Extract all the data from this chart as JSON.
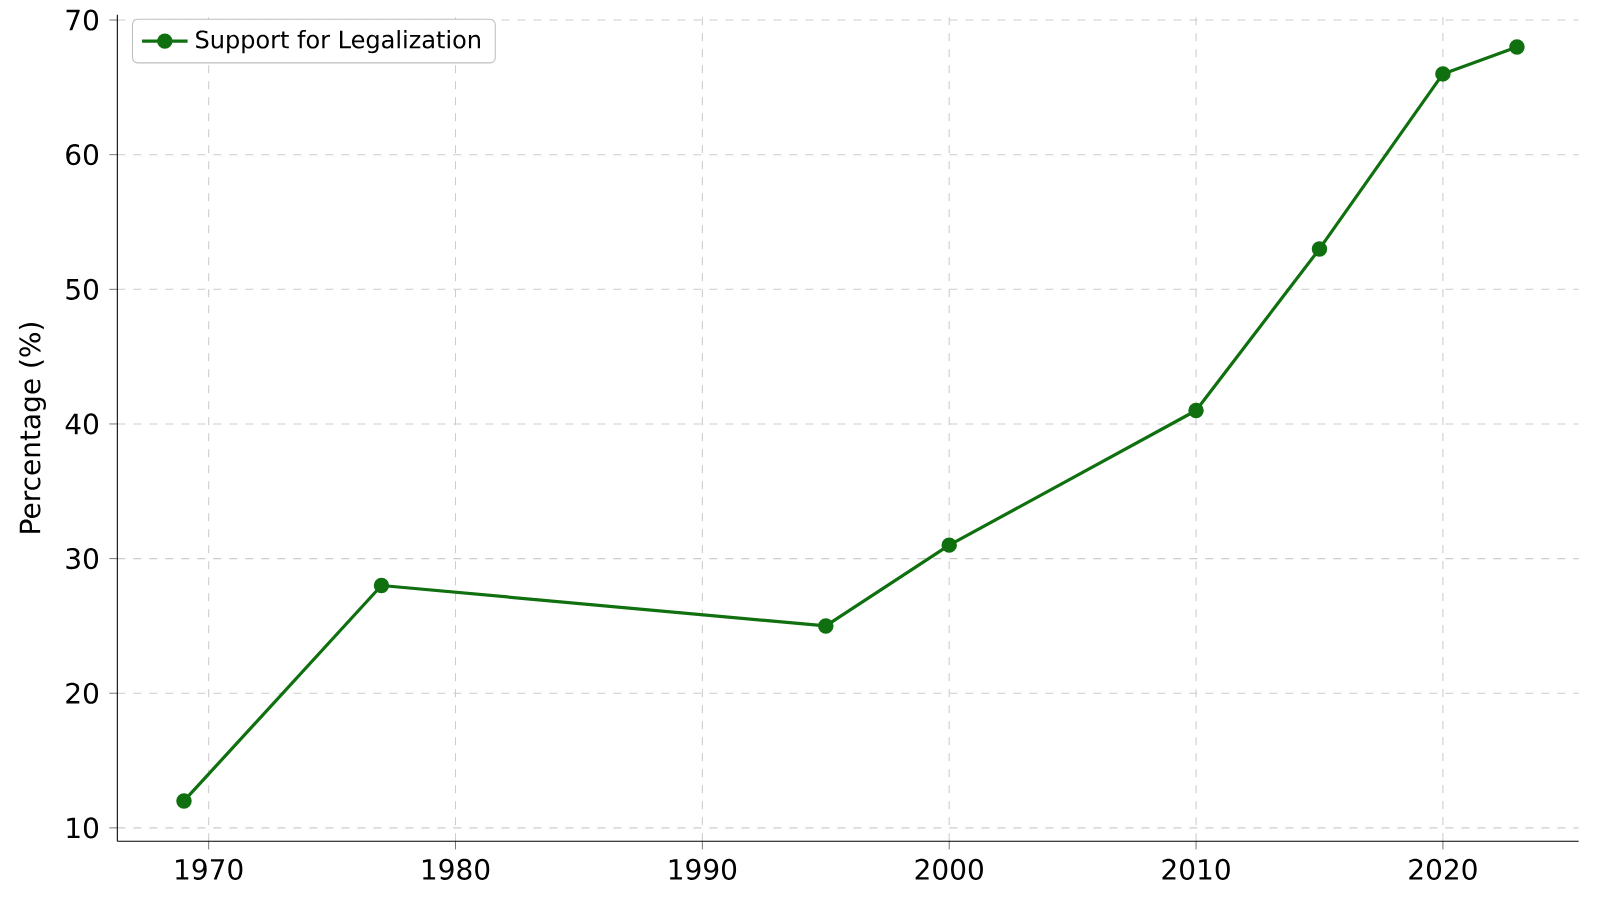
{
  "chart_data": {
    "type": "line",
    "ylabel": "Percentage (%)",
    "x": [
      1969,
      1977,
      1995,
      2000,
      2010,
      2015,
      2020,
      2023
    ],
    "series": [
      {
        "name": "Support for Legalization",
        "color": "#107010",
        "values": [
          12,
          28,
          25,
          31,
          41,
          53,
          66,
          68
        ]
      }
    ],
    "xlim": [
      1966.3,
      2025.5
    ],
    "ylim": [
      9,
      70.4
    ],
    "xticks": [
      1970,
      1980,
      1990,
      2000,
      2010,
      2020
    ],
    "yticks": [
      10,
      20,
      30,
      40,
      50,
      60,
      70
    ],
    "grid": true,
    "legend": "top left",
    "marker": "circle",
    "line_style": "solid"
  }
}
